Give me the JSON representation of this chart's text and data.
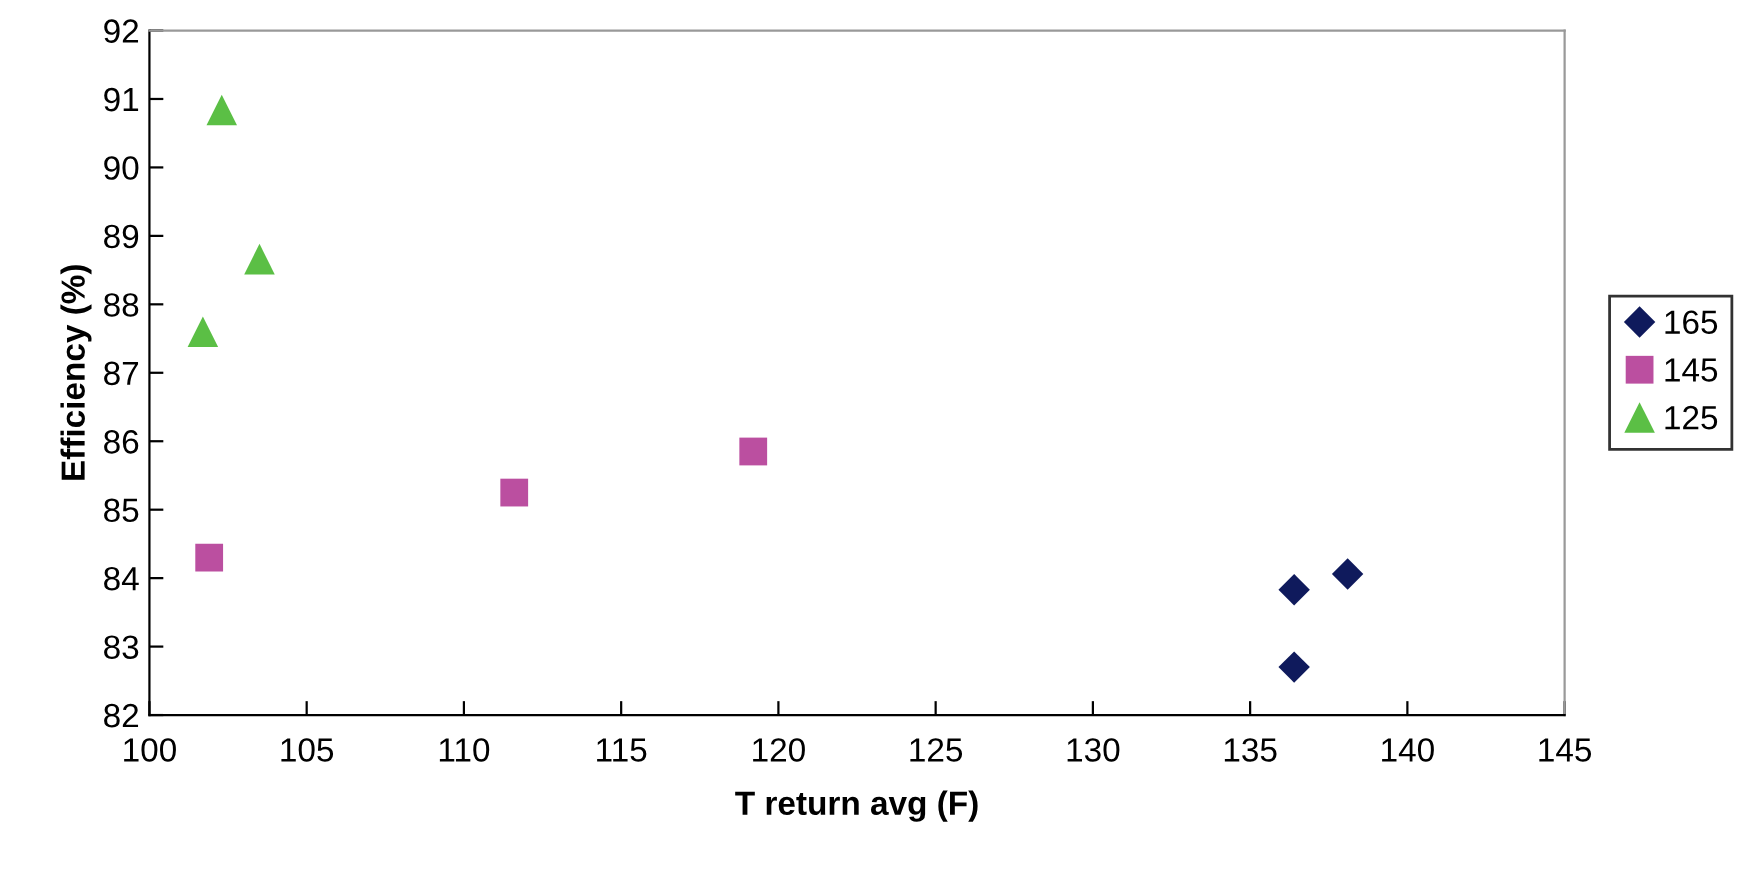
{
  "chart_data": {
    "type": "scatter",
    "xlabel": "T return avg (F)",
    "ylabel": "Efficiency (%)",
    "xlim": [
      100,
      145
    ],
    "xticks": [
      100,
      105,
      110,
      115,
      120,
      125,
      130,
      135,
      140,
      145
    ],
    "ylim": [
      82,
      92
    ],
    "yticks": [
      82,
      83,
      84,
      85,
      86,
      87,
      88,
      89,
      90,
      91,
      92
    ],
    "grid": false,
    "legend": "right",
    "series": [
      {
        "name": "165",
        "color": "#0f1a5c",
        "marker": "diamond",
        "x": [
          136.4,
          138.1,
          136.4
        ],
        "values": [
          83.83,
          84.06,
          82.7
        ]
      },
      {
        "name": "145",
        "color": "#bb4fa0",
        "marker": "square",
        "x": [
          101.9,
          111.6,
          119.2
        ],
        "values": [
          84.3,
          85.25,
          85.85
        ]
      },
      {
        "name": "125",
        "color": "#5bbf45",
        "marker": "triangle",
        "x": [
          102.3,
          103.5,
          101.7
        ],
        "values": [
          90.84,
          88.66,
          87.6
        ]
      }
    ]
  }
}
